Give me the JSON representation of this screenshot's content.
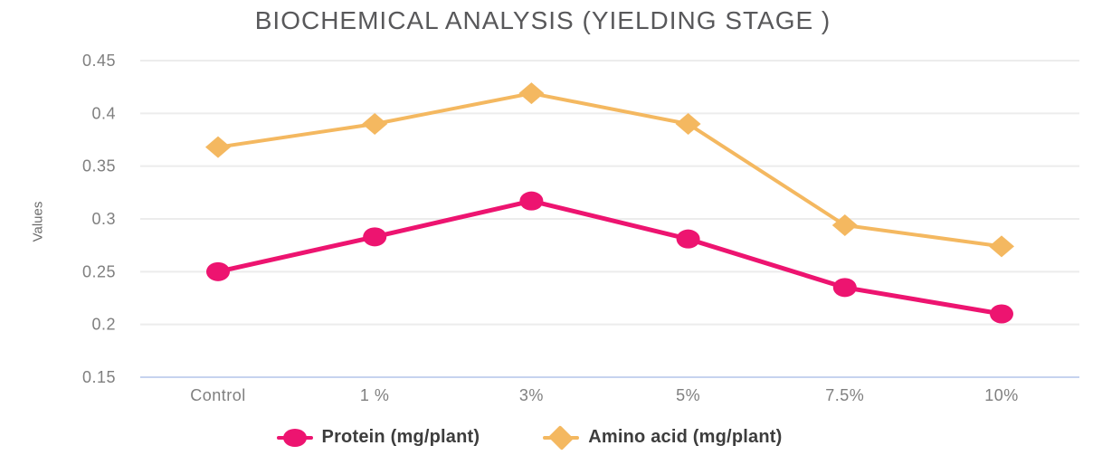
{
  "chart_data": {
    "type": "line",
    "title": "BIOCHEMICAL ANALYSIS (YIELDING STAGE )",
    "ylabel": "Values",
    "xlabel": "",
    "categories": [
      "Control",
      "1 %",
      "3%",
      "5%",
      "7.5%",
      "10%"
    ],
    "y_ticks": [
      "0.45",
      "0.4",
      "0.35",
      "0.3",
      "0.25",
      "0.2",
      "0.15"
    ],
    "ylim": [
      0.15,
      0.45
    ],
    "grid": true,
    "legend_position": "bottom",
    "series": [
      {
        "name": "Protein (mg/plant)",
        "marker": "circle",
        "color": "#ED1470",
        "values": [
          0.25,
          0.283,
          0.317,
          0.281,
          0.235,
          0.21
        ]
      },
      {
        "name": "Amino acid (mg/plant)",
        "marker": "diamond",
        "color": "#F4B860",
        "values": [
          0.368,
          0.39,
          0.419,
          0.39,
          0.294,
          0.274
        ]
      }
    ],
    "styles": {
      "baseline_color": "#c6d3ef",
      "gridline_color": "#ececec",
      "tick_label_color": "#7f7f7f",
      "title_color": "#58585a",
      "legend_text_color": "#3d3d3d"
    }
  }
}
